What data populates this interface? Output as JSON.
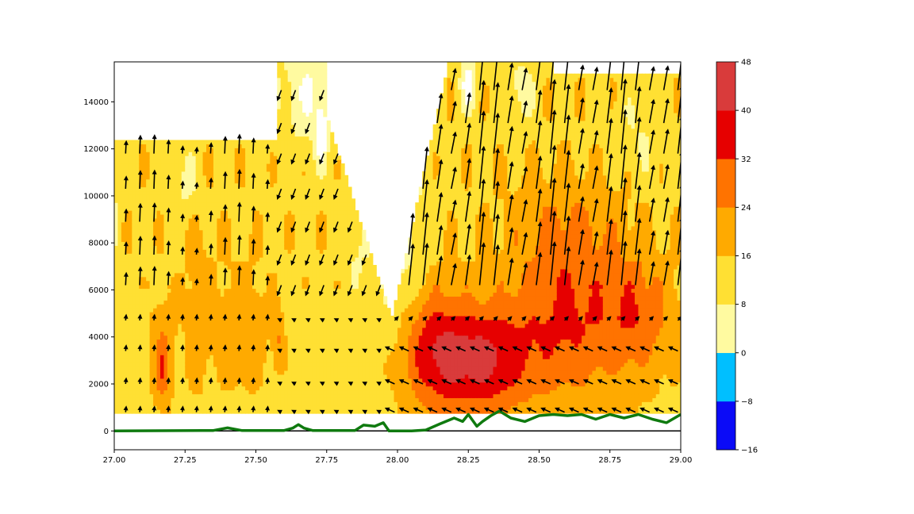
{
  "chart_data": {
    "type": "heatmap",
    "title": "",
    "xlabel": "",
    "ylabel": "",
    "xlim": [
      27.0,
      29.0
    ],
    "ylim": [
      -800,
      15700
    ],
    "x_ticks": [
      "27.00",
      "27.25",
      "27.50",
      "27.75",
      "28.00",
      "28.25",
      "28.50",
      "28.75",
      "29.00"
    ],
    "x_tick_values": [
      27.0,
      27.25,
      27.5,
      27.75,
      28.0,
      28.25,
      28.5,
      28.75,
      29.0
    ],
    "y_ticks": [
      "0",
      "2000",
      "4000",
      "6000",
      "8000",
      "10000",
      "12000",
      "14000"
    ],
    "y_tick_values": [
      0,
      2000,
      4000,
      6000,
      8000,
      10000,
      12000,
      14000
    ],
    "data_bottom": 750,
    "colorbar": {
      "levels": [
        -16,
        -8,
        0,
        8,
        16,
        24,
        32,
        40,
        48
      ],
      "tick_labels": [
        "−16",
        "−8",
        "0",
        "8",
        "16",
        "24",
        "32",
        "40",
        "48"
      ],
      "colors": [
        "#0b0bf7",
        "#00bfff",
        "#fffaa0",
        "#ffe033",
        "#ffaa00",
        "#ff7300",
        "#e60000",
        "#d93b3b"
      ]
    },
    "terrain_line": {
      "color": "#0f7a0f",
      "x": [
        27.0,
        27.35,
        27.4,
        27.45,
        27.6,
        27.63,
        27.65,
        27.67,
        27.7,
        27.85,
        27.88,
        27.92,
        27.95,
        27.97,
        28.0,
        28.05,
        28.1,
        28.15,
        28.2,
        28.23,
        28.25,
        28.28,
        28.3,
        28.33,
        28.36,
        28.4,
        28.45,
        28.5,
        28.55,
        28.6,
        28.65,
        28.7,
        28.75,
        28.8,
        28.85,
        28.9,
        28.95,
        29.0
      ],
      "y": [
        0,
        20,
        130,
        20,
        20,
        120,
        270,
        120,
        20,
        20,
        250,
        200,
        350,
        0,
        0,
        0,
        40,
        300,
        550,
        400,
        700,
        200,
        400,
        650,
        850,
        550,
        400,
        650,
        700,
        650,
        700,
        500,
        700,
        550,
        700,
        500,
        350,
        700
      ]
    },
    "zero_line": 0
  }
}
